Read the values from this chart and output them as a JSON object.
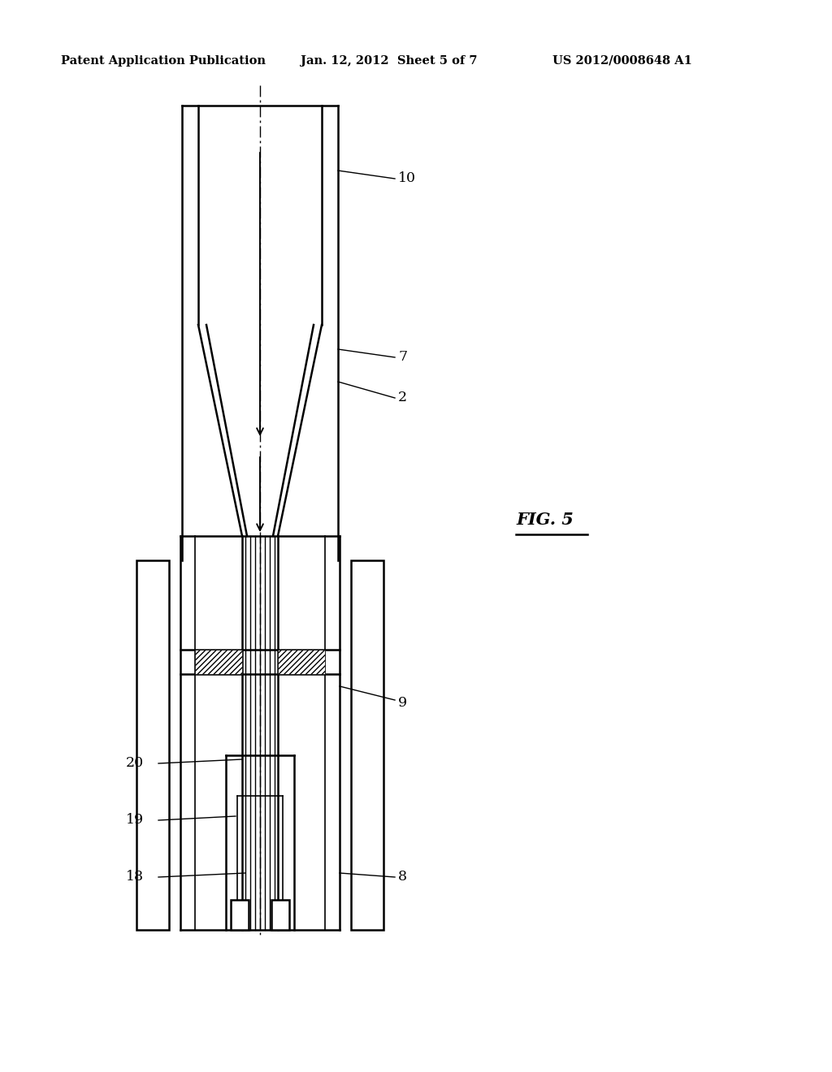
{
  "background_color": "#ffffff",
  "header_left": "Patent Application Publication",
  "header_mid": "Jan. 12, 2012  Sheet 5 of 7",
  "header_right": "US 2012/0008648 A1",
  "fig_label": "FIG. 5"
}
